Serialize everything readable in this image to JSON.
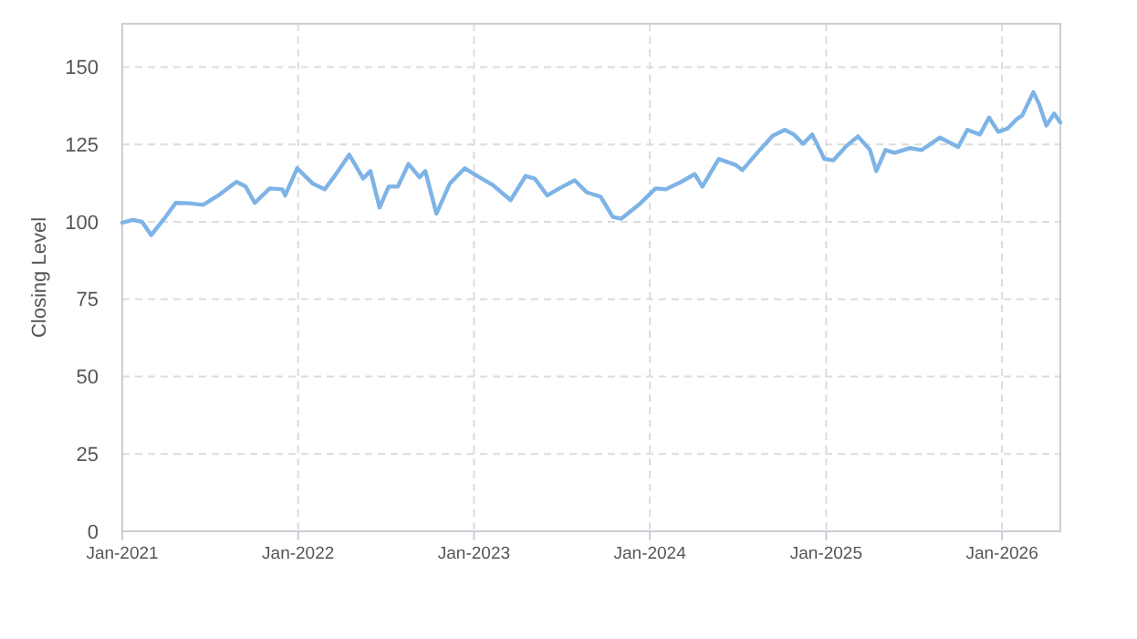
{
  "chart_data": {
    "type": "line",
    "ylabel": "Closing Level",
    "xlim": [
      "2021-01-01",
      "2026-05-02"
    ],
    "ylim": [
      0,
      164
    ],
    "yticks": [
      0,
      25,
      50,
      75,
      100,
      125,
      150
    ],
    "xticks": [
      {
        "value": "2021-01-01",
        "label": "Jan-2021"
      },
      {
        "value": "2022-01-01",
        "label": "Jan-2022"
      },
      {
        "value": "2023-01-01",
        "label": "Jan-2023"
      },
      {
        "value": "2024-01-01",
        "label": "Jan-2024"
      },
      {
        "value": "2025-01-01",
        "label": "Jan-2025"
      },
      {
        "value": "2026-01-01",
        "label": "Jan-2026"
      }
    ],
    "grid": true,
    "line_style": "solid",
    "marker": "none",
    "x": [
      "2021-01-01",
      "2021-01-23",
      "2021-02-11",
      "2021-03-02",
      "2021-03-27",
      "2021-04-22",
      "2021-05-17",
      "2021-06-18",
      "2021-07-19",
      "2021-08-26",
      "2021-09-14",
      "2021-10-03",
      "2021-11-03",
      "2021-11-29",
      "2021-12-05",
      "2021-12-30",
      "2022-01-31",
      "2022-02-25",
      "2022-03-16",
      "2022-04-17",
      "2022-05-16",
      "2022-05-31",
      "2022-06-19",
      "2022-07-08",
      "2022-07-27",
      "2022-08-18",
      "2022-09-10",
      "2022-09-22",
      "2022-10-15",
      "2022-11-12",
      "2022-12-13",
      "2023-01-01",
      "2023-01-08",
      "2023-02-08",
      "2023-03-18",
      "2023-04-18",
      "2023-05-07",
      "2023-06-02",
      "2023-06-27",
      "2023-07-29",
      "2023-08-23",
      "2023-09-21",
      "2023-10-16",
      "2023-11-03",
      "2023-12-09",
      "2024-01-13",
      "2024-02-03",
      "2024-03-06",
      "2024-04-03",
      "2024-04-19",
      "2024-05-23",
      "2024-06-28",
      "2024-07-11",
      "2024-08-11",
      "2024-09-12",
      "2024-10-07",
      "2024-10-26",
      "2024-11-14",
      "2024-12-03",
      "2024-12-22",
      "2024-12-28",
      "2025-01-16",
      "2025-02-10",
      "2025-03-08",
      "2025-04-02",
      "2025-04-15",
      "2025-05-04",
      "2025-05-23",
      "2025-06-23",
      "2025-07-18",
      "2025-08-25",
      "2025-10-02",
      "2025-10-21",
      "2025-11-16",
      "2025-12-05",
      "2025-12-24",
      "2026-01-12",
      "2026-01-31",
      "2026-02-12",
      "2026-03-07",
      "2026-03-19",
      "2026-04-03",
      "2026-04-19",
      "2026-05-02"
    ],
    "series": [
      {
        "color": "#7eb3e6",
        "values": [
          99.7,
          100.6,
          100,
          95.7,
          100.6,
          106.1,
          106,
          105.5,
          108.5,
          112.9,
          111.4,
          106.1,
          110.8,
          110.5,
          108.5,
          117.3,
          112.4,
          110.5,
          114.4,
          121.7,
          114,
          116.4,
          104.6,
          111.4,
          111.4,
          118.7,
          114.4,
          116.4,
          102.6,
          112.4,
          117.3,
          115.4,
          114.8,
          112,
          107,
          114.8,
          114,
          108.5,
          110.8,
          113.4,
          109.5,
          108.1,
          101.6,
          101,
          105.5,
          110.8,
          110.5,
          112.9,
          115.4,
          111.4,
          120.3,
          118.3,
          116.7,
          122.3,
          127.8,
          129.7,
          128.2,
          125.2,
          128.2,
          122.3,
          120.3,
          119.9,
          124.2,
          127.6,
          123.2,
          116.4,
          123.2,
          122.3,
          123.8,
          123.2,
          127.2,
          124.2,
          129.7,
          128.2,
          133.7,
          129.1,
          130.1,
          133.1,
          134.4,
          141.9,
          138,
          131.1,
          135,
          132.1
        ]
      }
    ]
  }
}
